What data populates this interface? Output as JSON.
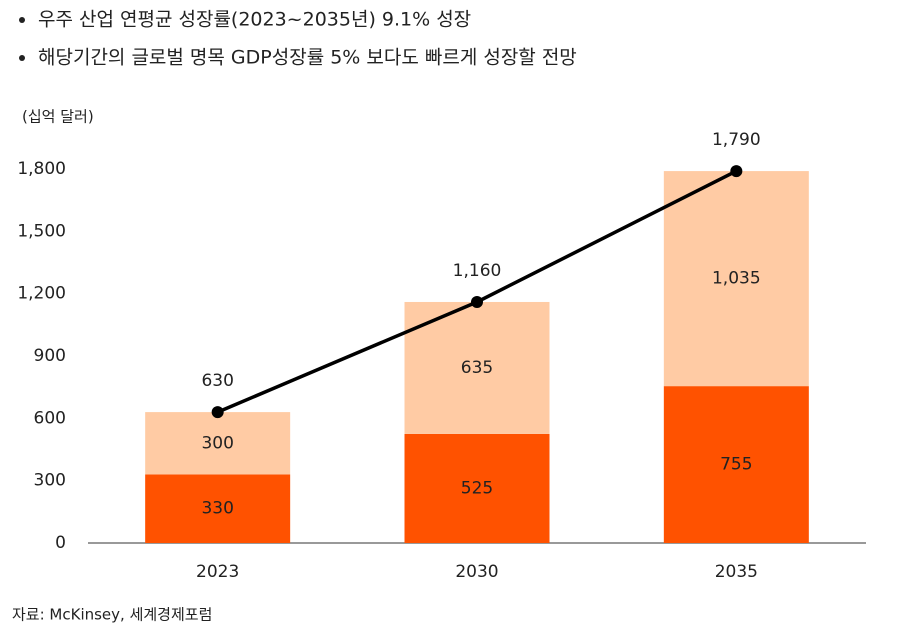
{
  "notes": [
    "우주 산업 연평균 성장률(2023~2035년) 9.1% 성장",
    "해당기간의 글로벌 명목 GDP성장률 5% 보다도 빠르게 성장할 전망"
  ],
  "source": "자료: McKinsey, 세계경제포럼",
  "chart_data": {
    "type": "bar",
    "stacked": true,
    "y_label": "(십억 달러)",
    "categories": [
      "2023",
      "2030",
      "2035"
    ],
    "series": [
      {
        "color": "#ff5200",
        "values": [
          330,
          525,
          755
        ]
      },
      {
        "color": "#ffcba4",
        "values": [
          300,
          635,
          1035
        ],
        "value_labels": [
          "300",
          "635",
          "1,035"
        ]
      },
      {
        "type": "line",
        "color": "#000000",
        "values": [
          630,
          1160,
          1790
        ],
        "value_labels": [
          "630",
          "1,160",
          "1,790"
        ]
      }
    ],
    "ylim": [
      0,
      1800
    ],
    "yticks": [
      0,
      300,
      600,
      900,
      {
        "value": 1200,
        "label": "1,200"
      },
      {
        "value": 1500,
        "label": "1,500"
      },
      {
        "value": 1800,
        "label": "1,800"
      }
    ],
    "grid": false
  }
}
